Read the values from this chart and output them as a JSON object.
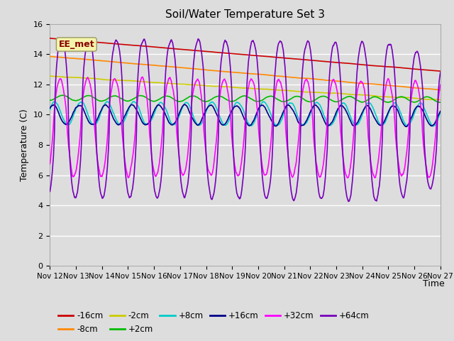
{
  "title": "Soil/Water Temperature Set 3",
  "xlabel": "Time",
  "ylabel": "Temperature (C)",
  "xlim": [
    0,
    15
  ],
  "ylim": [
    0,
    16
  ],
  "yticks": [
    0,
    2,
    4,
    6,
    8,
    10,
    12,
    14,
    16
  ],
  "xtick_labels": [
    "Nov 12",
    "Nov 13",
    "Nov 14",
    "Nov 15",
    "Nov 16",
    "Nov 17",
    "Nov 18",
    "Nov 19",
    "Nov 20",
    "Nov 21",
    "Nov 22",
    "Nov 23",
    "Nov 24",
    "Nov 25",
    "Nov 26",
    "Nov 27"
  ],
  "annotation_text": "EE_met",
  "series": {
    "-16cm": {
      "color": "#cc0000",
      "lw": 1.2
    },
    "-8cm": {
      "color": "#ff8800",
      "lw": 1.2
    },
    "-2cm": {
      "color": "#cccc00",
      "lw": 1.2
    },
    "+2cm": {
      "color": "#00bb00",
      "lw": 1.2
    },
    "+8cm": {
      "color": "#00cccc",
      "lw": 1.2
    },
    "+16cm": {
      "color": "#000088",
      "lw": 1.2
    },
    "+32cm": {
      "color": "#ff00ff",
      "lw": 1.2
    },
    "+64cm": {
      "color": "#7700bb",
      "lw": 1.2
    }
  },
  "bg_color": "#dddddd",
  "plot_bg_color": "#dddddd",
  "grid_color": "#ffffff"
}
